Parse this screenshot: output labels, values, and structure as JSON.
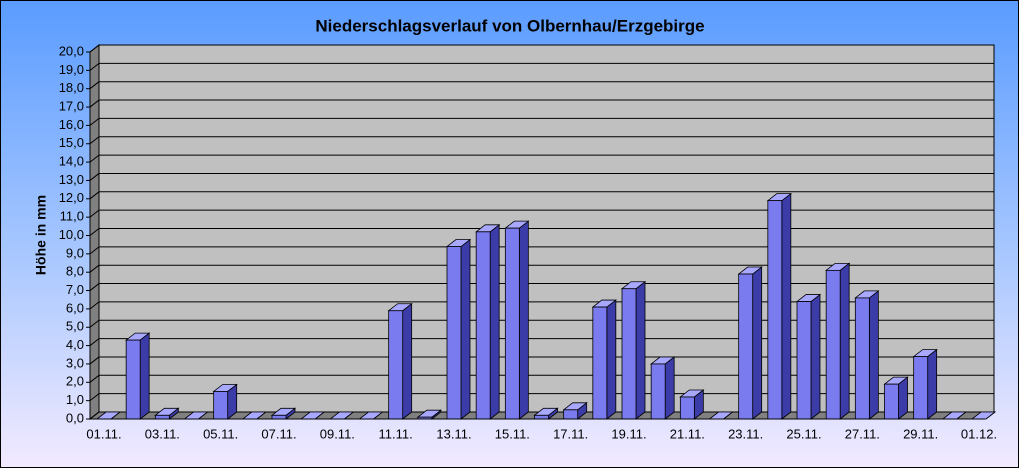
{
  "chart_data": {
    "type": "bar",
    "title": "Niederschlagsverlauf von Olbernhau/Erzgebirge",
    "y_label": "Höhe in mm",
    "categories": [
      "01.11.",
      null,
      "03.11.",
      null,
      "05.11.",
      null,
      "07.11.",
      null,
      "09.11.",
      null,
      "11.11.",
      null,
      "13.11.",
      null,
      "15.11.",
      null,
      "17.11.",
      null,
      "19.11.",
      null,
      "21.11.",
      null,
      "23.11.",
      null,
      "25.11.",
      null,
      "27.11.",
      null,
      "29.11.",
      null,
      "01.12."
    ],
    "values": [
      0,
      4.3,
      0.2,
      0,
      1.5,
      0,
      0.2,
      0,
      0,
      0,
      5.9,
      0.1,
      9.4,
      10.2,
      10.4,
      0.2,
      0.5,
      6.1,
      7.1,
      3.0,
      1.2,
      0,
      7.9,
      11.9,
      6.4,
      8.1,
      6.6,
      1.9,
      3.4,
      0,
      0
    ],
    "color": "#7b7bf0",
    "ylim": [
      0,
      20
    ],
    "yticks": [
      {
        "value": 0,
        "label": "0,0"
      },
      {
        "value": 1,
        "label": "1,0"
      },
      {
        "value": 2,
        "label": "2,0"
      },
      {
        "value": 3,
        "label": "3,0"
      },
      {
        "value": 4,
        "label": "4,0"
      },
      {
        "value": 5,
        "label": "5,0"
      },
      {
        "value": 6,
        "label": "6,0"
      },
      {
        "value": 7,
        "label": "7,0"
      },
      {
        "value": 8,
        "label": "8,0"
      },
      {
        "value": 9,
        "label": "9,0"
      },
      {
        "value": 10,
        "label": "10,0"
      },
      {
        "value": 11,
        "label": "11,0"
      },
      {
        "value": 12,
        "label": "12,0"
      },
      {
        "value": 13,
        "label": "13,0"
      },
      {
        "value": 14,
        "label": "14,0"
      },
      {
        "value": 15,
        "label": "15,0"
      },
      {
        "value": 16,
        "label": "16,0"
      },
      {
        "value": 17,
        "label": "17,0"
      },
      {
        "value": 18,
        "label": "18,0"
      },
      {
        "value": 19,
        "label": "19,0"
      },
      {
        "value": 20,
        "label": "20,0"
      }
    ],
    "grid": true
  }
}
